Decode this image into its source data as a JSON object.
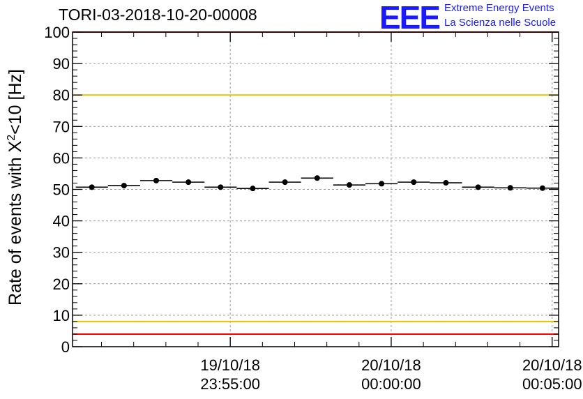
{
  "header": {
    "title": "TORI-03-2018-10-20-00008",
    "logo_text": "EEE",
    "logo_line1": "Extreme Energy Events",
    "logo_line2": "La Scienza nelle Scuole"
  },
  "colors": {
    "logo": "#1a1aff",
    "red_limit": "#ff0000",
    "yellow_limit": "#e6c300",
    "grid": "#999999",
    "points": "#000000"
  },
  "chart_data": {
    "type": "scatter",
    "title": "TORI-03-2018-10-20-00008",
    "ylabel_main": "Rate of events with X",
    "ylabel_sup": "2",
    "ylabel_tail": "<10 [Hz]",
    "xlabel": "",
    "ylim": [
      0,
      100
    ],
    "yticks": [
      0,
      10,
      20,
      30,
      40,
      50,
      60,
      70,
      80,
      90,
      100
    ],
    "xlim_min": [
      -9.9,
      5.2
    ],
    "xticks": [
      {
        "min": -5,
        "date": "19/10/18",
        "time": "23:55:00"
      },
      {
        "min": 0,
        "date": "20/10/18",
        "time": "00:00:00"
      },
      {
        "min": 5,
        "date": "20/10/18",
        "time": "00:05:00"
      }
    ],
    "bin_width_min": 1.0,
    "x": [
      -9.3,
      -8.3,
      -7.3,
      -6.3,
      -5.3,
      -4.3,
      -3.3,
      -2.3,
      -1.3,
      -0.3,
      0.7,
      1.7,
      2.7,
      3.7,
      4.7
    ],
    "values": [
      50.7,
      51.2,
      52.8,
      52.3,
      50.7,
      50.3,
      52.3,
      53.6,
      51.4,
      51.8,
      52.3,
      52.1,
      50.7,
      50.5,
      50.4
    ],
    "hlines": [
      {
        "name": "upper-red-limit",
        "y": 100,
        "color": "#ff0000"
      },
      {
        "name": "upper-yellow-limit",
        "y": 80,
        "color": "#e6c300"
      },
      {
        "name": "lower-yellow-limit",
        "y": 8,
        "color": "#e6c300"
      },
      {
        "name": "lower-red-limit",
        "y": 4,
        "color": "#ff0000"
      }
    ],
    "grid": true
  }
}
